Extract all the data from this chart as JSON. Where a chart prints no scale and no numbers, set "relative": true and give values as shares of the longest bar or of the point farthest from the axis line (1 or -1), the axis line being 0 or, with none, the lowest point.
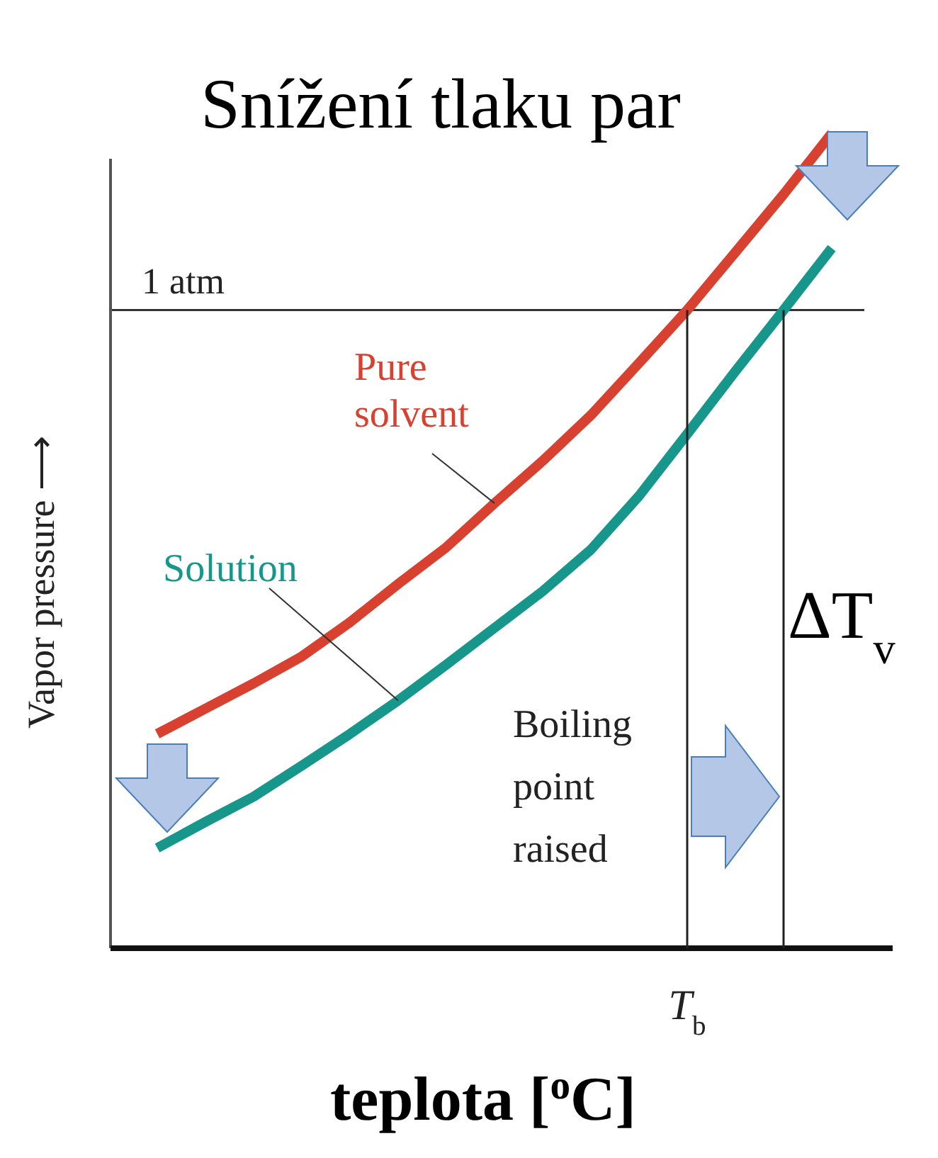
{
  "chart_data": {
    "type": "line",
    "title": "Snížení tlaku par",
    "xlabel": "teplota [$^{o}$C]",
    "ylabel": "Vapor pressure ⟶",
    "relative": true,
    "categories": [
      null,
      null,
      null,
      null,
      null,
      null,
      null,
      null,
      null,
      null,
      null,
      null,
      null,
      null,
      null
    ],
    "series": [
      {
        "name": "Pure solvent",
        "color": "#d8402f",
        "values": [
          0.263,
          0.294,
          0.325,
          0.358,
          0.4,
          0.447,
          0.492,
          0.546,
          0.598,
          0.654,
          0.718,
          0.783,
          0.854,
          0.925,
          1
        ]
      },
      {
        "name": "Solution",
        "color": "#17978b",
        "values": [
          0.123,
          0.155,
          0.186,
          0.224,
          0.263,
          0.304,
          0.348,
          0.393,
          0.438,
          0.489,
          0.555,
          0.631,
          0.708,
          0.783,
          0.859
        ]
      }
    ],
    "ref_lines": [
      {
        "axis": "y",
        "value": 0.783,
        "label": "1 atm"
      }
    ],
    "annotations": [
      "Boiling point raised",
      "T$_{b}$",
      "ΔT$_{v}$"
    ]
  }
}
